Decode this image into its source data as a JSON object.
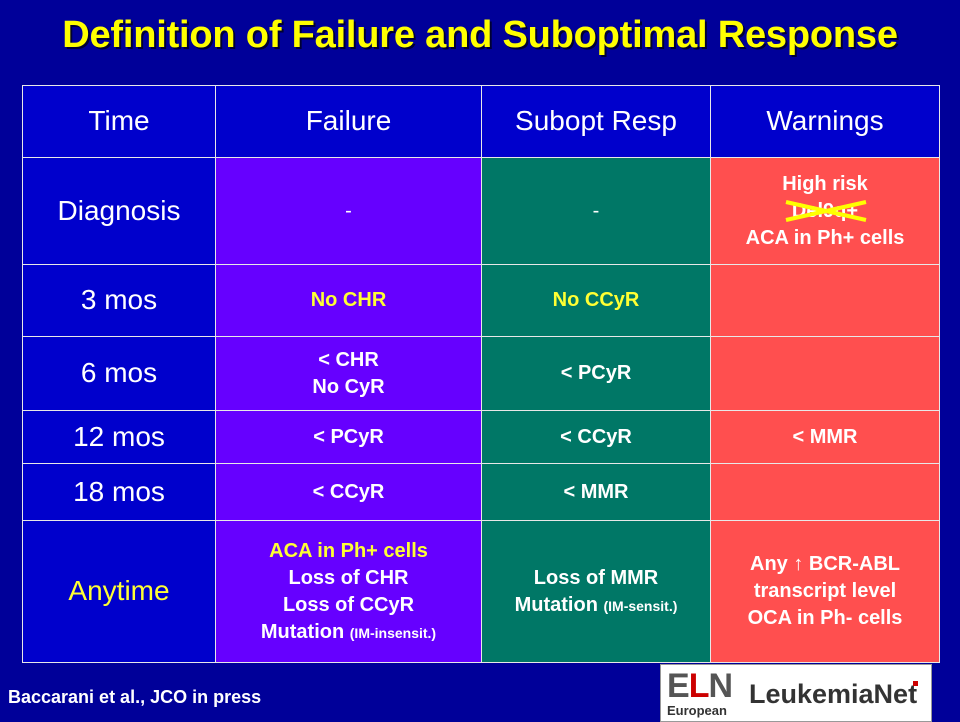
{
  "title": "Definition of Failure and Suboptimal Response",
  "headers": {
    "time": "Time",
    "failure": "Failure",
    "subopt": "Subopt Resp",
    "warnings": "Warnings"
  },
  "rows": [
    {
      "time": "Diagnosis",
      "failure": [
        "-"
      ],
      "subopt": [
        "-"
      ],
      "warnings": [
        "High risk",
        "Del9q+",
        "ACA in Ph+ cells"
      ]
    },
    {
      "time": "3 mos",
      "failure": [
        "No CHR"
      ],
      "subopt": [
        "No CCyR"
      ],
      "warnings": []
    },
    {
      "time": "6 mos",
      "failure": [
        "< CHR",
        "No CyR"
      ],
      "subopt": [
        "< PCyR"
      ],
      "warnings": []
    },
    {
      "time": "12 mos",
      "failure": [
        "< PCyR"
      ],
      "subopt": [
        "< CCyR"
      ],
      "warnings": [
        "< MMR"
      ]
    },
    {
      "time": "18 mos",
      "failure": [
        "< CCyR"
      ],
      "subopt": [
        "< MMR"
      ],
      "warnings": []
    },
    {
      "time": "Anytime",
      "failure": [
        "ACA in Ph+ cells",
        "Loss of CHR",
        "Loss of CCyR",
        "Mutation",
        "(IM-insensit.)"
      ],
      "subopt": [
        "Loss of MMR",
        "Mutation",
        "(IM-sensit.)"
      ],
      "warnings": [
        "Any ↑ BCR-ABL",
        "transcript level",
        "OCA in Ph- cells"
      ]
    }
  ],
  "citation": "Baccarani et al., JCO in press",
  "logo": {
    "eln_e": "E",
    "eln_l": "L",
    "eln_n": "N",
    "european": "European",
    "leukemianet": "LeukemiaNet"
  },
  "colors": {
    "background": "#000099",
    "title": "#FFFF00",
    "time_col": "#0000CC",
    "failure_col": "#6600FF",
    "subopt_col": "#007766",
    "warnings_col": "#FF4F4F",
    "highlight_text": "#FFFF33",
    "strike": "#FFFF00"
  }
}
